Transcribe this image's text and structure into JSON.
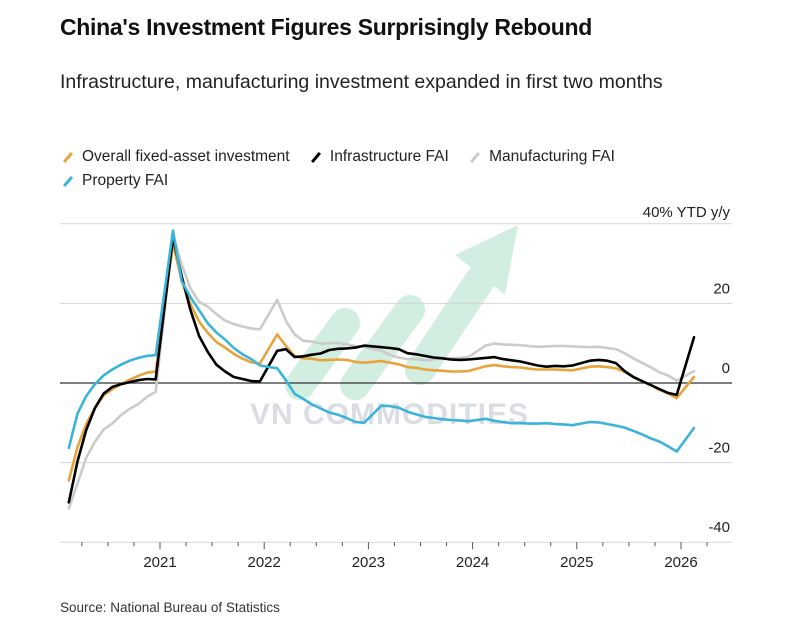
{
  "title": "China's Investment Figures Surprisingly Rebound",
  "subtitle": "Infrastructure, manufacturing investment expanded in first two months",
  "source": "Source: National Bureau of Statistics",
  "watermark": "VN COMMODITIES",
  "chart_data": {
    "type": "line",
    "title": "China's Investment Figures Surprisingly Rebound",
    "subtitle": "Infrastructure, manufacturing investment expanded in first two months",
    "ylabel": "40% YTD y/y",
    "ylim": [
      -40,
      40
    ],
    "yticks": [
      "40% YTD y/y",
      "20",
      "0",
      "-20",
      "-40"
    ],
    "xticks": [
      "2021",
      "2022",
      "2023",
      "2024",
      "2025",
      "2026"
    ],
    "grid": true,
    "legend": "top",
    "x": [
      "2020-02",
      "2020-03",
      "2020-04",
      "2020-05",
      "2020-06",
      "2020-07",
      "2020-08",
      "2020-09",
      "2020-10",
      "2020-11",
      "2020-12",
      "2021-02",
      "2021-03",
      "2021-04",
      "2021-05",
      "2021-06",
      "2021-07",
      "2021-08",
      "2021-09",
      "2021-10",
      "2021-11",
      "2021-12",
      "2022-02",
      "2022-03",
      "2022-04",
      "2022-05",
      "2022-06",
      "2022-07",
      "2022-08",
      "2022-09",
      "2022-10",
      "2022-11",
      "2022-12",
      "2023-02",
      "2023-03",
      "2023-04",
      "2023-05",
      "2023-06",
      "2023-07",
      "2023-08",
      "2023-09",
      "2023-10",
      "2023-11",
      "2023-12",
      "2024-02",
      "2024-03",
      "2024-04",
      "2024-05",
      "2024-06",
      "2024-07",
      "2024-08",
      "2024-09",
      "2024-10",
      "2024-11",
      "2024-12",
      "2025-02",
      "2025-03",
      "2025-04",
      "2025-05",
      "2025-06",
      "2025-07",
      "2025-08",
      "2025-09",
      "2025-10",
      "2025-11",
      "2025-12",
      "2026-02"
    ],
    "series": [
      {
        "name": "Manufacturing FAI",
        "color": "#cbcbcb",
        "values": [
          -31.5,
          -25.2,
          -18.8,
          -14.8,
          -11.7,
          -10.2,
          -8.1,
          -6.5,
          -5.3,
          -3.5,
          -2.2,
          37.3,
          29.8,
          23.8,
          20.4,
          19.2,
          17.3,
          15.7,
          14.8,
          14.2,
          13.7,
          13.5,
          20.9,
          15.6,
          12.2,
          10.6,
          10.4,
          9.9,
          10.0,
          10.1,
          9.7,
          9.3,
          9.1,
          8.1,
          7.0,
          6.4,
          6.0,
          6.0,
          5.7,
          5.9,
          6.2,
          6.2,
          6.3,
          6.5,
          9.4,
          9.9,
          9.7,
          9.6,
          9.5,
          9.3,
          9.1,
          9.2,
          9.3,
          9.3,
          9.2,
          9.0,
          9.1,
          8.8,
          8.5,
          7.5,
          6.2,
          5.1,
          4.0,
          2.7,
          1.9,
          0.6,
          3.0
        ]
      },
      {
        "name": "Overall fixed-asset investment",
        "color": "#e8a33d",
        "values": [
          -24.5,
          -16.1,
          -10.3,
          -6.3,
          -3.1,
          -1.6,
          -0.3,
          0.8,
          1.8,
          2.6,
          2.9,
          35.0,
          25.6,
          19.9,
          15.4,
          12.6,
          10.3,
          8.9,
          7.3,
          6.1,
          5.2,
          4.9,
          12.2,
          9.3,
          6.8,
          6.2,
          6.1,
          5.7,
          5.8,
          5.9,
          5.8,
          5.3,
          5.1,
          5.5,
          5.1,
          4.7,
          4.0,
          3.8,
          3.4,
          3.2,
          3.1,
          2.9,
          2.9,
          3.0,
          4.2,
          4.5,
          4.2,
          4.0,
          3.9,
          3.6,
          3.4,
          3.4,
          3.4,
          3.3,
          3.2,
          4.1,
          4.2,
          4.0,
          3.7,
          2.8,
          1.6,
          0.5,
          -0.5,
          -1.7,
          -2.6,
          -3.8,
          1.5
        ]
      },
      {
        "name": "Infrastructure FAI",
        "color": "#000000",
        "values": [
          -30.0,
          -19.7,
          -11.8,
          -6.3,
          -2.7,
          -1.0,
          -0.3,
          0.2,
          0.7,
          1.0,
          0.9,
          36.6,
          26.8,
          18.4,
          11.8,
          7.8,
          4.6,
          2.9,
          1.5,
          1.0,
          0.5,
          0.4,
          8.1,
          8.5,
          6.5,
          6.7,
          7.1,
          7.4,
          8.3,
          8.6,
          8.7,
          8.9,
          9.4,
          9.0,
          8.8,
          8.5,
          7.5,
          7.2,
          6.8,
          6.4,
          6.2,
          5.9,
          5.8,
          5.9,
          6.3,
          6.5,
          6.0,
          5.7,
          5.4,
          4.9,
          4.4,
          4.1,
          4.3,
          4.2,
          4.4,
          5.6,
          5.8,
          5.6,
          5.0,
          3.0,
          1.5,
          0.5,
          -0.5,
          -1.5,
          -2.5,
          -3.0,
          11.5
        ]
      },
      {
        "name": "Property FAI",
        "color": "#3ab4d8",
        "values": [
          -16.3,
          -7.7,
          -3.3,
          -0.3,
          1.9,
          3.4,
          4.6,
          5.6,
          6.3,
          6.8,
          7.0,
          38.3,
          25.6,
          21.6,
          18.3,
          15.0,
          12.7,
          10.9,
          8.8,
          7.2,
          6.0,
          4.4,
          3.7,
          0.7,
          -2.7,
          -4.0,
          -5.4,
          -6.4,
          -7.4,
          -8.0,
          -8.8,
          -9.8,
          -10.0,
          -5.7,
          -5.8,
          -6.2,
          -7.2,
          -7.9,
          -8.5,
          -8.8,
          -9.1,
          -9.3,
          -9.4,
          -9.6,
          -9.0,
          -9.5,
          -9.8,
          -10.1,
          -10.1,
          -10.2,
          -10.2,
          -10.1,
          -10.3,
          -10.4,
          -10.6,
          -9.8,
          -9.9,
          -10.3,
          -10.7,
          -11.2,
          -12.0,
          -12.9,
          -13.9,
          -14.7,
          -15.9,
          -17.2,
          -11.3
        ]
      }
    ]
  }
}
